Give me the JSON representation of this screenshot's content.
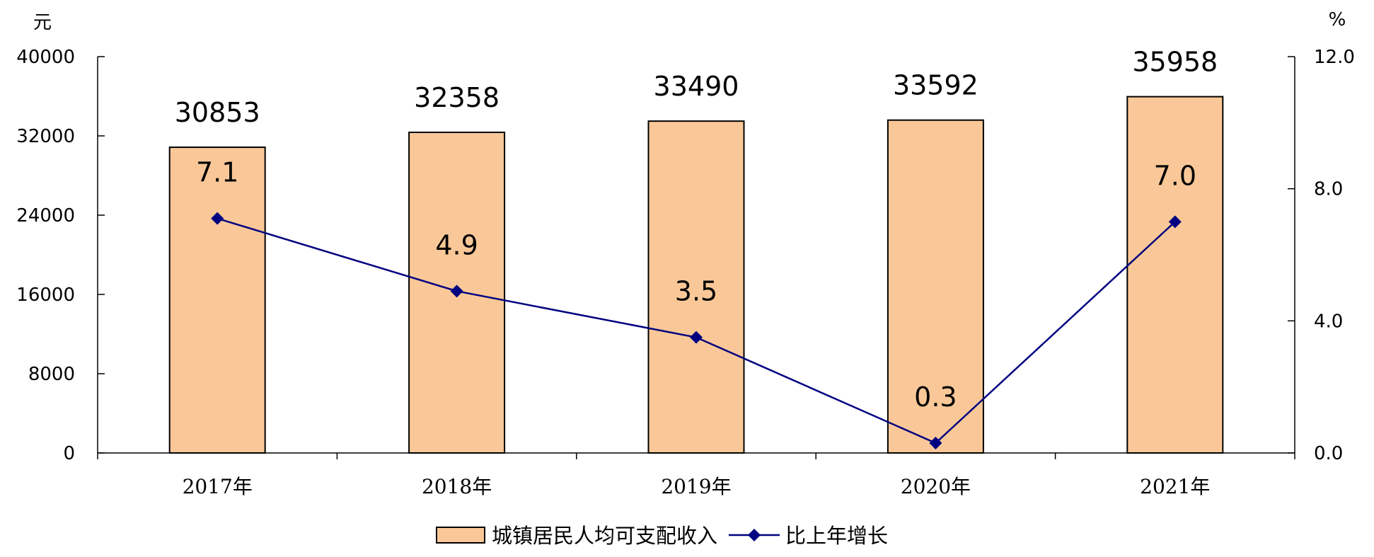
{
  "chart_data": {
    "type": "bar",
    "title": "",
    "categories": [
      "2017年",
      "2018年",
      "2019年",
      "2020年",
      "2021年"
    ],
    "series": [
      {
        "name": "城镇居民人均可支配收入",
        "type": "bar",
        "axis": "left",
        "values": [
          30853,
          32358,
          33490,
          33592,
          35958
        ],
        "color": "#FAC898",
        "labels": [
          "30853",
          "32358",
          "33490",
          "33592",
          "35958"
        ]
      },
      {
        "name": "比上年增长",
        "type": "line",
        "axis": "right",
        "values": [
          7.1,
          4.9,
          3.5,
          0.3,
          7.0
        ],
        "color": "#000080",
        "labels": [
          "7.1",
          "4.9",
          "3.5",
          "0.3",
          "7.0"
        ]
      }
    ],
    "y_left": {
      "unit": "元",
      "ylim": [
        0,
        40000
      ],
      "ticks": [
        "0",
        "8000",
        "16000",
        "24000",
        "32000",
        "40000"
      ]
    },
    "y_right": {
      "unit": "%",
      "ylim": [
        0,
        12
      ],
      "ticks": [
        "0.0",
        "4.0",
        "8.0",
        "12.0"
      ]
    },
    "grid": false,
    "legend_position": "bottom-center"
  }
}
